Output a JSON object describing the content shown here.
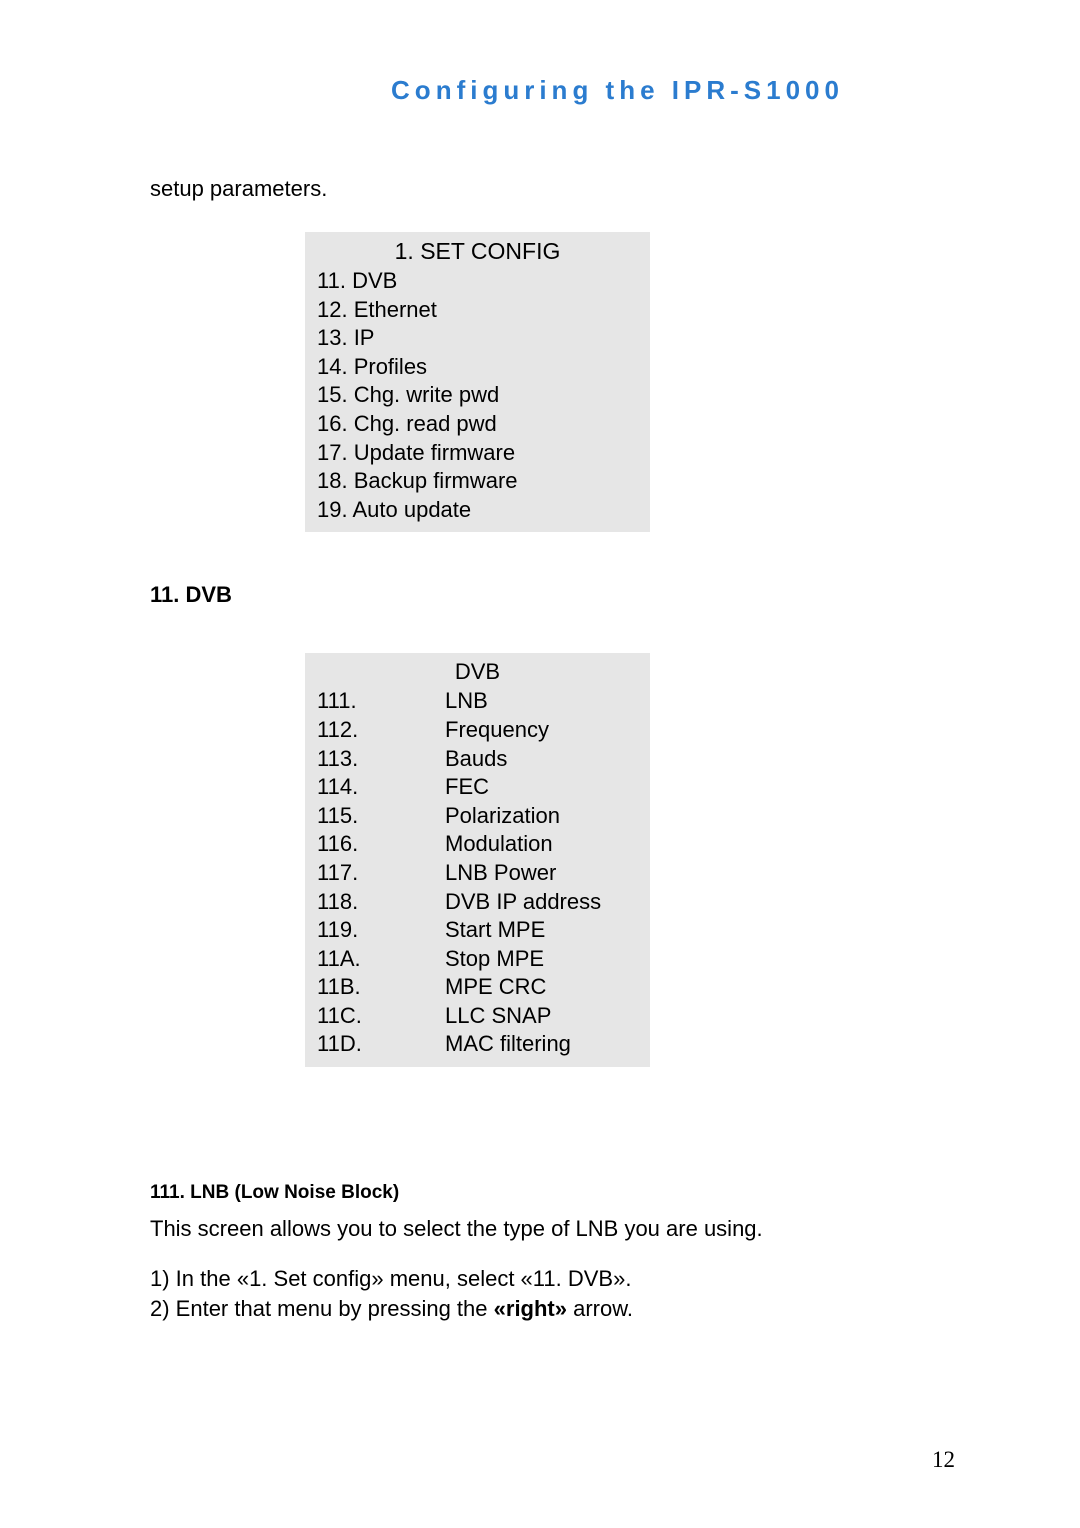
{
  "header": {
    "title": "Configuring the IPR-S1000"
  },
  "setupText": "setup parameters.",
  "configBox": {
    "title": "1. SET CONFIG",
    "items": [
      "11. DVB",
      "12. Ethernet",
      "13. IP",
      "14. Profiles",
      "15. Chg. write pwd",
      "16. Chg. read pwd",
      "17. Update firmware",
      "18. Backup firmware",
      "19. Auto update"
    ]
  },
  "sectionHeading": "11. DVB",
  "dvbBox": {
    "title": "DVB",
    "rows": [
      {
        "num": "111.",
        "label": "LNB"
      },
      {
        "num": "112.",
        "label": "Frequency"
      },
      {
        "num": "113.",
        "label": "Bauds"
      },
      {
        "num": "114.",
        "label": "FEC"
      },
      {
        "num": "115.",
        "label": "Polarization"
      },
      {
        "num": "116.",
        "label": "Modulation"
      },
      {
        "num": "117.",
        "label": "LNB Power"
      },
      {
        "num": "118.",
        "label": "DVB IP address"
      },
      {
        "num": "119.",
        "label": "Start MPE"
      },
      {
        "num": "11A.",
        "label": "Stop MPE"
      },
      {
        "num": "11B.",
        "label": "MPE CRC"
      },
      {
        "num": "11C.",
        "label": "LLC SNAP"
      },
      {
        "num": "11D.",
        "label": "MAC filtering"
      }
    ]
  },
  "subHeading": "111. LNB (Low Noise Block)",
  "bodyText": "This screen allows you to select the type of LNB you are using.",
  "step1": {
    "prefix": "1) In the «1. Set config» menu, select «11. DVB».",
    "full": "1) In the «1. Set config» menu, select «11. DVB»."
  },
  "step2": {
    "prefix": "2) Enter that menu by pressing the ",
    "bold": "«right»",
    "suffix": " arrow."
  },
  "pageNumber": "12",
  "colors": {
    "headerBlue": "#2b7ccf",
    "boxGray": "#e6e6e6",
    "background": "#ffffff",
    "text": "#000000"
  }
}
